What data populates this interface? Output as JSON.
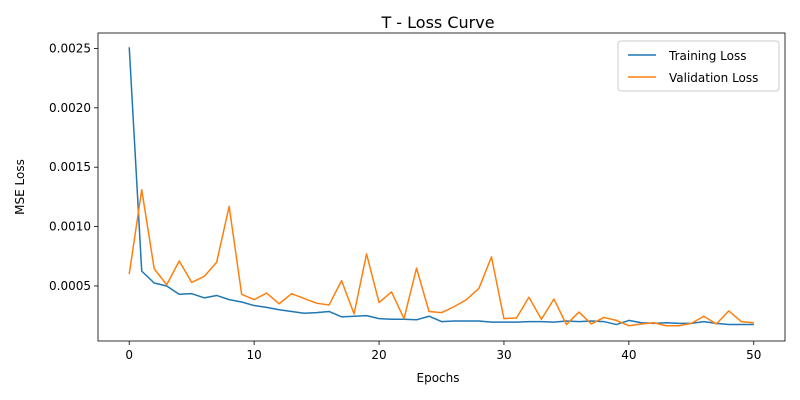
{
  "chart_data": {
    "type": "line",
    "title": "T - Loss Curve",
    "xlabel": "Epochs",
    "ylabel": "MSE Loss",
    "xlim": [
      -2.5,
      52.5
    ],
    "ylim": [
      3.65e-05,
      0.00263
    ],
    "xticks": [
      0,
      10,
      20,
      30,
      40,
      50
    ],
    "yticks": [
      0.0005,
      0.001,
      0.0015,
      0.002,
      0.0025
    ],
    "ytick_labels": [
      "0.0005",
      "0.0010",
      "0.0015",
      "0.0020",
      "0.0025"
    ],
    "grid": false,
    "legend_position": "top-right",
    "series": [
      {
        "name": "Training Loss",
        "color": "#1f77b4",
        "x": [
          0,
          1,
          2,
          3,
          4,
          5,
          6,
          7,
          8,
          9,
          10,
          11,
          12,
          13,
          14,
          15,
          16,
          17,
          18,
          19,
          20,
          21,
          22,
          23,
          24,
          25,
          26,
          27,
          28,
          29,
          30,
          31,
          32,
          33,
          34,
          35,
          36,
          37,
          38,
          39,
          40,
          41,
          42,
          43,
          44,
          45,
          46,
          47,
          48,
          49,
          50
        ],
        "y": [
          0.00251,
          0.000625,
          0.000525,
          0.0005,
          0.00043,
          0.000435,
          0.0004,
          0.00042,
          0.000385,
          0.000365,
          0.000335,
          0.00032,
          0.0003,
          0.000285,
          0.00027,
          0.000275,
          0.000285,
          0.00024,
          0.000245,
          0.00025,
          0.000225,
          0.00022,
          0.00022,
          0.000215,
          0.000245,
          0.0002,
          0.000205,
          0.000205,
          0.000205,
          0.000195,
          0.000195,
          0.000195,
          0.0002,
          0.0002,
          0.000195,
          0.000205,
          0.0002,
          0.000205,
          0.0002,
          0.000175,
          0.00021,
          0.00019,
          0.000185,
          0.00019,
          0.000185,
          0.000185,
          0.0002,
          0.000185,
          0.000175,
          0.000175,
          0.000175
        ]
      },
      {
        "name": "Validation Loss",
        "color": "#ff7f0e",
        "x": [
          0,
          1,
          2,
          3,
          4,
          5,
          6,
          7,
          8,
          9,
          10,
          11,
          12,
          13,
          14,
          15,
          16,
          17,
          18,
          19,
          20,
          21,
          22,
          23,
          24,
          25,
          26,
          27,
          28,
          29,
          30,
          31,
          32,
          33,
          34,
          35,
          36,
          37,
          38,
          39,
          40,
          41,
          42,
          43,
          44,
          45,
          46,
          47,
          48,
          49,
          50
        ],
        "y": [
          0.0006,
          0.00131,
          0.000645,
          0.00051,
          0.00071,
          0.00053,
          0.00058,
          0.0007,
          0.00117,
          0.00043,
          0.000385,
          0.00044,
          0.00035,
          0.000435,
          0.000395,
          0.000355,
          0.00034,
          0.000545,
          0.000265,
          0.00077,
          0.00036,
          0.00045,
          0.000225,
          0.00065,
          0.000285,
          0.000275,
          0.000325,
          0.000385,
          0.00048,
          0.000745,
          0.000225,
          0.00023,
          0.000405,
          0.00022,
          0.00039,
          0.000175,
          0.00028,
          0.00018,
          0.000235,
          0.00021,
          0.000165,
          0.00018,
          0.00019,
          0.000165,
          0.000165,
          0.000185,
          0.000245,
          0.00018,
          0.00029,
          0.0002,
          0.00019
        ]
      }
    ]
  }
}
